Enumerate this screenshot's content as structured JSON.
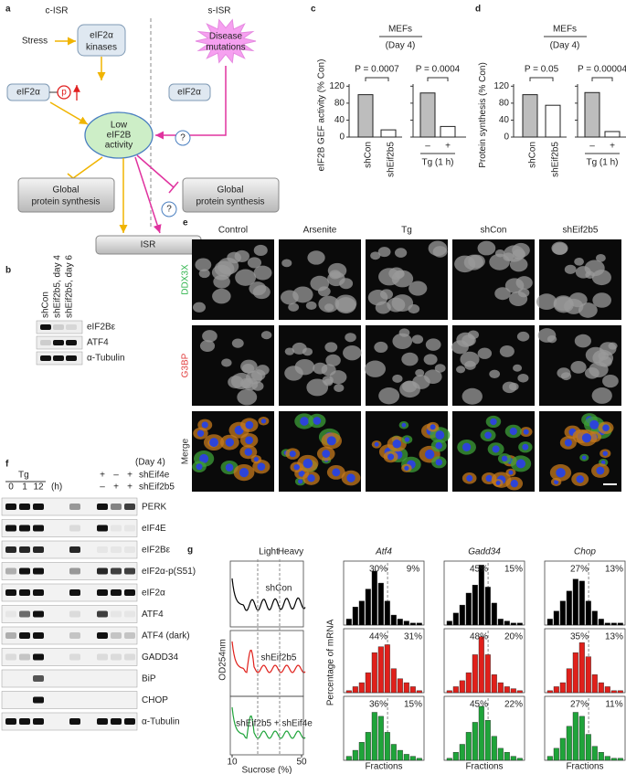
{
  "panel_labels": [
    "a",
    "b",
    "c",
    "d",
    "e",
    "f",
    "g"
  ],
  "diagram": {
    "c_isr": "c-ISR",
    "s_isr": "s-ISR",
    "stress": "Stress",
    "kinases": [
      "eIF2α",
      "kinases"
    ],
    "eif2a_p": "eIF2α",
    "p": "p",
    "eif2a": "eIF2α",
    "mutations": [
      "Disease",
      "mutations"
    ],
    "low": [
      "Low",
      "eIF2B",
      "activity"
    ],
    "global_left": [
      "Global",
      "protein synthesis"
    ],
    "global_right": [
      "Global",
      "protein synthesis"
    ],
    "q1": "?",
    "q2": "?",
    "isr": "ISR"
  },
  "blot_b": {
    "lanes": [
      "shCon",
      "shEif2b5, day 4",
      "shEif2b5, day 6"
    ],
    "rows": [
      "eIF2Bε",
      "ATF4",
      "α-Tubulin"
    ]
  },
  "blot_f": {
    "day": "(Day 4)",
    "tg": "Tg",
    "times": [
      "0",
      "1",
      "12"
    ],
    "unit": "(h)",
    "shEif4e": {
      "name": "shEif4e",
      "signs": [
        "+",
        "–",
        "+"
      ]
    },
    "shEif2b5": {
      "name": "shEif2b5",
      "signs": [
        "–",
        "+",
        "+"
      ]
    },
    "rows": [
      "PERK",
      "eIF4E",
      "eIF2Bε",
      "eIF2α-p(S51)",
      "eIF2α",
      "ATF4",
      "ATF4 (dark)",
      "GADD34",
      "BiP",
      "CHOP",
      "α-Tubulin"
    ]
  },
  "imaging": {
    "columns": [
      "Control",
      "Arsenite",
      "Tg",
      "shCon",
      "shEif2b5"
    ],
    "rows": [
      {
        "name": "DDX3X",
        "color": "#2db34a"
      },
      {
        "name": "G3BP",
        "color": "#e03a3a"
      },
      {
        "name": "Merge",
        "color": "#333333"
      }
    ]
  },
  "profile": {
    "ylabel": "OD254nm",
    "xlabel": "Sucrose (%)",
    "xlim": [
      10,
      50
    ],
    "xticks": [
      10,
      50
    ],
    "regions": [
      "Light",
      "Heavy"
    ]
  },
  "chart_data": [
    {
      "type": "bar",
      "header": "MEFs",
      "subheader": "(Day 4)",
      "ylabel": "eIF2B GEF activity (% Con)",
      "ylim": [
        0,
        125
      ],
      "yticks": [
        0,
        40,
        80,
        120
      ],
      "colors": [
        "#bdbdbd",
        "#ffffff"
      ],
      "panels": [
        {
          "categories": [
            "shCon",
            "shEif2b5"
          ],
          "values": [
            100,
            17
          ],
          "pvalue": "P = 0.0007"
        },
        {
          "categories": [
            "–",
            "+"
          ],
          "xlabel": "Tg (1 h)",
          "values": [
            104,
            25
          ],
          "pvalue": "P = 0.0004"
        }
      ]
    },
    {
      "type": "bar",
      "header": "MEFs",
      "subheader": "(Day 4)",
      "ylabel": "Protein synthesis (% Con)",
      "ylim": [
        0,
        125
      ],
      "yticks": [
        0,
        40,
        80,
        120
      ],
      "colors": [
        "#bdbdbd",
        "#ffffff"
      ],
      "panels": [
        {
          "categories": [
            "shCon",
            "shEif2b5"
          ],
          "values": [
            100,
            75
          ],
          "pvalue": "P = 0.05"
        },
        {
          "categories": [
            "–",
            "+"
          ],
          "xlabel": "Tg (1 h)",
          "values": [
            105,
            13
          ],
          "pvalue": "P = 0.00004"
        }
      ]
    },
    {
      "type": "multibar",
      "ylabel": "Percentage of mRNA",
      "xlabel": "Fractions",
      "columns": [
        "Atf4",
        "Gadd34",
        "Chop"
      ],
      "ylim": [
        0,
        32
      ],
      "series": [
        {
          "name": "shCon",
          "color": "#000000",
          "values": [
            [
              3,
              9,
              12,
              18,
              27,
              21,
              12,
              5,
              3,
              2,
              1,
              1
            ],
            [
              2,
              6,
              10,
              16,
              20,
              30,
              19,
              11,
              3,
              2,
              1,
              1
            ],
            [
              3,
              7,
              12,
              17,
              23,
              22,
              12,
              7,
              3,
              1,
              1,
              1
            ]
          ],
          "annotations": [
            [
              "30%",
              "9%"
            ],
            [
              "45%",
              "15%"
            ],
            [
              "27%",
              "13%"
            ]
          ]
        },
        {
          "name": "shEif2b5",
          "color": "#e0201b",
          "values": [
            [
              1,
              3,
              5,
              10,
              20,
              23,
              24,
              12,
              7,
              5,
              3,
              1
            ],
            [
              1,
              3,
              6,
              10,
              19,
              28,
              19,
              9,
              5,
              3,
              2,
              1
            ],
            [
              1,
              3,
              5,
              12,
              20,
              25,
              18,
              9,
              5,
              3,
              1,
              1
            ]
          ],
          "annotations": [
            [
              "44%",
              "31%"
            ],
            [
              "48%",
              "20%"
            ],
            [
              "35%",
              "13%"
            ]
          ]
        },
        {
          "name": "shEif2b5 + shEif4e",
          "color": "#1fa43a",
          "values": [
            [
              2,
              5,
              9,
              14,
              24,
              22,
              14,
              8,
              5,
              3,
              2,
              1
            ],
            [
              1,
              4,
              8,
              14,
              19,
              27,
              20,
              12,
              6,
              4,
              2,
              1
            ],
            [
              2,
              6,
              11,
              17,
              24,
              22,
              13,
              7,
              4,
              2,
              1,
              1
            ]
          ],
          "annotations": [
            [
              "36%",
              "15%"
            ],
            [
              "45%",
              "22%"
            ],
            [
              "27%",
              "11%"
            ]
          ]
        }
      ]
    }
  ]
}
